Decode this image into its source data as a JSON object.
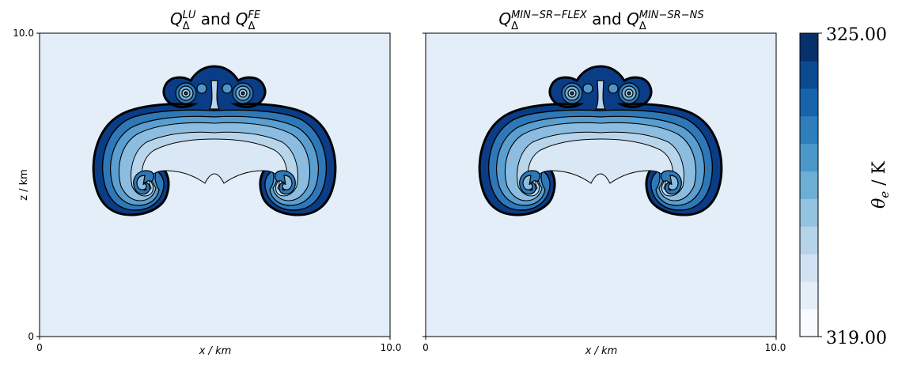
{
  "chart_data": [
    {
      "type": "contour",
      "title_parts": {
        "q1": "Q",
        "sub1": "Δ",
        "sup1": "LU",
        "and": " and ",
        "q2": "Q",
        "sub2": "Δ",
        "sup2": "FE"
      },
      "xlabel": "x / km",
      "ylabel": "z / km",
      "xlim": [
        0,
        10.0
      ],
      "ylim": [
        0,
        10.0
      ],
      "xticks": [
        "0",
        "10.0"
      ],
      "yticks": [
        "0",
        "10.0"
      ]
    },
    {
      "type": "contour",
      "title_parts": {
        "q1": "Q",
        "sub1": "Δ",
        "sup1": "MIN−SR−FLEX",
        "and": " and ",
        "q2": "Q",
        "sub2": "Δ",
        "sup2": "MIN−SR−NS"
      },
      "xlabel": "x / km",
      "xlim": [
        0,
        10.0
      ],
      "ylim": [
        0,
        10.0
      ],
      "xticks": [
        "0",
        "10.0"
      ]
    }
  ],
  "colorbar": {
    "min_label": "319.00",
    "max_label": "325.00",
    "min": 319.0,
    "max": 325.0,
    "label": "θe / K",
    "label_main": "θ",
    "label_sub": "e",
    "label_unit": " / K",
    "colors": [
      "#f7fbff",
      "#e3eef9",
      "#cfe1f2",
      "#b5d4e9",
      "#93c3df",
      "#6daed5",
      "#4b97c9",
      "#2f7ebc",
      "#1864aa",
      "#0a4a90",
      "#08306b"
    ]
  },
  "colors": {
    "background_fill": "#e3eef9",
    "contour_line": "#000000"
  }
}
